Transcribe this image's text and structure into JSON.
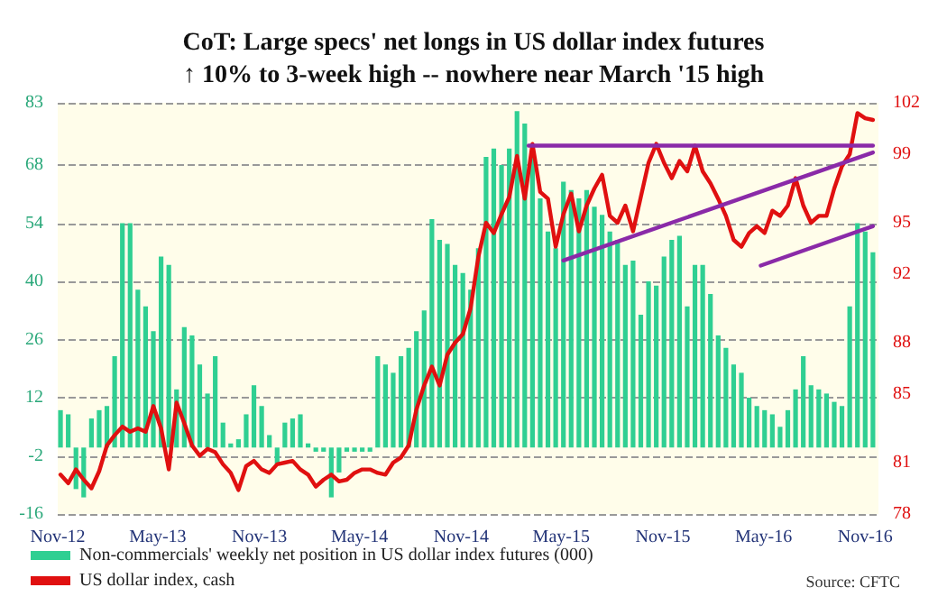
{
  "chart_data": {
    "type": "bar",
    "title": "CoT: Large specs' net longs in US dollar index futures",
    "subtitle": "↑ 10% to 3-week high -- nowhere near March '15 high",
    "annotations": [
      "Source: CFTC"
    ],
    "x": [
      "2012-11-06",
      "2012-11-20",
      "2012-12-04",
      "2012-12-18",
      "2013-01-01",
      "2013-01-15",
      "2013-01-29",
      "2013-02-12",
      "2013-02-26",
      "2013-03-12",
      "2013-03-26",
      "2013-04-09",
      "2013-04-23",
      "2013-05-07",
      "2013-05-21",
      "2013-06-04",
      "2013-06-18",
      "2013-07-02",
      "2013-07-16",
      "2013-07-30",
      "2013-08-13",
      "2013-08-27",
      "2013-09-10",
      "2013-09-24",
      "2013-10-08",
      "2013-10-22",
      "2013-11-05",
      "2013-11-19",
      "2013-12-03",
      "2013-12-17",
      "2013-12-31",
      "2014-01-14",
      "2014-01-28",
      "2014-02-11",
      "2014-02-25",
      "2014-03-11",
      "2014-03-25",
      "2014-04-08",
      "2014-04-22",
      "2014-05-06",
      "2014-05-20",
      "2014-06-03",
      "2014-06-17",
      "2014-07-01",
      "2014-07-15",
      "2014-07-29",
      "2014-08-12",
      "2014-08-26",
      "2014-09-09",
      "2014-09-23",
      "2014-10-07",
      "2014-10-21",
      "2014-11-04",
      "2014-11-18",
      "2014-12-02",
      "2014-12-16",
      "2014-12-30",
      "2015-01-13",
      "2015-01-27",
      "2015-02-10",
      "2015-02-24",
      "2015-03-10",
      "2015-03-24",
      "2015-04-07",
      "2015-04-21",
      "2015-05-05",
      "2015-05-19",
      "2015-06-02",
      "2015-06-16",
      "2015-06-30",
      "2015-07-14",
      "2015-07-28",
      "2015-08-11",
      "2015-08-25",
      "2015-09-08",
      "2015-09-22",
      "2015-10-06",
      "2015-10-20",
      "2015-11-03",
      "2015-11-17",
      "2015-12-01",
      "2015-12-15",
      "2015-12-29",
      "2016-01-12",
      "2016-01-26",
      "2016-02-09",
      "2016-02-23",
      "2016-03-08",
      "2016-03-22",
      "2016-04-05",
      "2016-04-19",
      "2016-05-03",
      "2016-05-17",
      "2016-05-31",
      "2016-06-14",
      "2016-06-28",
      "2016-07-12",
      "2016-07-26",
      "2016-08-09",
      "2016-08-23",
      "2016-09-06",
      "2016-09-20",
      "2016-10-04",
      "2016-10-18",
      "2016-11-01",
      "2016-11-15"
    ],
    "series": [
      {
        "name": "Non-commercials' weekly net position in US dollar index futures (000)",
        "color": "#2fcf92",
        "values": [
          9,
          8,
          -10,
          -12,
          7,
          9,
          10,
          22,
          54,
          54,
          38,
          34,
          28,
          46,
          44,
          14,
          29,
          27,
          20,
          13,
          22,
          6,
          1,
          2,
          8,
          15,
          10,
          3,
          -4,
          6,
          7,
          8,
          1,
          -1,
          -1,
          -12,
          -6,
          -1,
          -1,
          -1,
          -1,
          22,
          20,
          18,
          22,
          24,
          28,
          33,
          55,
          50,
          49,
          44,
          42,
          38,
          48,
          70,
          72,
          68,
          72,
          81,
          78,
          70,
          60,
          52,
          48,
          64,
          62,
          60,
          62,
          58,
          56,
          52,
          50,
          44,
          45,
          32,
          40,
          39,
          46,
          50,
          51,
          34,
          44,
          44,
          37,
          27,
          24,
          20,
          18,
          12,
          10,
          9,
          8,
          5,
          9,
          14,
          22,
          15,
          14,
          13,
          11,
          10,
          34,
          54,
          52,
          47
        ]
      },
      {
        "name": "US dollar index, cash",
        "type": "line",
        "axis": "y2",
        "color": "#e01010",
        "values": [
          80.3,
          79.8,
          80.6,
          80.0,
          79.5,
          80.5,
          82.0,
          82.6,
          83.1,
          82.8,
          83.0,
          82.8,
          84.3,
          83.0,
          80.6,
          84.5,
          83.3,
          82.0,
          81.4,
          81.8,
          81.6,
          80.9,
          80.4,
          79.4,
          80.8,
          81.1,
          80.6,
          80.4,
          80.9,
          81.0,
          81.1,
          80.6,
          80.3,
          79.6,
          80.0,
          80.3,
          79.9,
          80.0,
          80.4,
          80.6,
          80.6,
          80.4,
          80.3,
          81.0,
          81.3,
          82.0,
          84.1,
          85.5,
          86.6,
          85.5,
          87.3,
          88.0,
          88.5,
          90.0,
          93.0,
          95.0,
          94.4,
          95.5,
          96.5,
          98.9,
          96.4,
          99.6,
          96.8,
          96.4,
          93.6,
          95.5,
          96.7,
          94.5,
          96.0,
          97.0,
          97.8,
          95.4,
          95.0,
          96.0,
          94.5,
          96.5,
          98.5,
          99.6,
          98.5,
          97.6,
          98.6,
          98.0,
          99.5,
          98.0,
          97.3,
          96.4,
          95.4,
          94.0,
          93.6,
          94.4,
          94.8,
          94.4,
          95.7,
          95.4,
          96.0,
          97.6,
          96.0,
          95.0,
          95.4,
          95.4,
          97.0,
          98.3,
          99.0,
          101.4,
          101.1,
          101.0
        ]
      },
      {
        "type": "line",
        "axis": "y2",
        "color": "#8a2aa8",
        "x": [
          "2015-03-03",
          "2016-11-15"
        ],
        "values": [
          99.5,
          99.5
        ]
      },
      {
        "type": "line",
        "axis": "y2",
        "color": "#8a2aa8",
        "x": [
          "2015-05-05",
          "2016-11-15"
        ],
        "values": [
          92.8,
          99.1
        ]
      },
      {
        "type": "line",
        "axis": "y2",
        "color": "#8a2aa8",
        "x": [
          "2016-04-26",
          "2016-11-15"
        ],
        "values": [
          92.5,
          94.8
        ]
      }
    ],
    "xlim": [
      "2012-11-01",
      "2016-11-25"
    ],
    "xticks": [
      {
        "value": "2012-11-01",
        "label": "Nov-12"
      },
      {
        "value": "2013-05-01",
        "label": "May-13"
      },
      {
        "value": "2013-11-01",
        "label": "Nov-13"
      },
      {
        "value": "2014-05-01",
        "label": "May-14"
      },
      {
        "value": "2014-11-01",
        "label": "Nov-14"
      },
      {
        "value": "2015-05-01",
        "label": "May-15"
      },
      {
        "value": "2015-11-01",
        "label": "Nov-15"
      },
      {
        "value": "2016-05-01",
        "label": "May-16"
      },
      {
        "value": "2016-11-01",
        "label": "Nov-16"
      }
    ],
    "ylim": [
      -16,
      83
    ],
    "yticks": [
      -16,
      -2,
      12,
      26,
      40,
      54,
      68,
      83
    ],
    "y2lim": [
      78,
      102
    ],
    "y2ticks": [
      78,
      81,
      85,
      88,
      92,
      95,
      99,
      102
    ],
    "grid": "y",
    "legend": "bottom left",
    "marker": "none"
  }
}
